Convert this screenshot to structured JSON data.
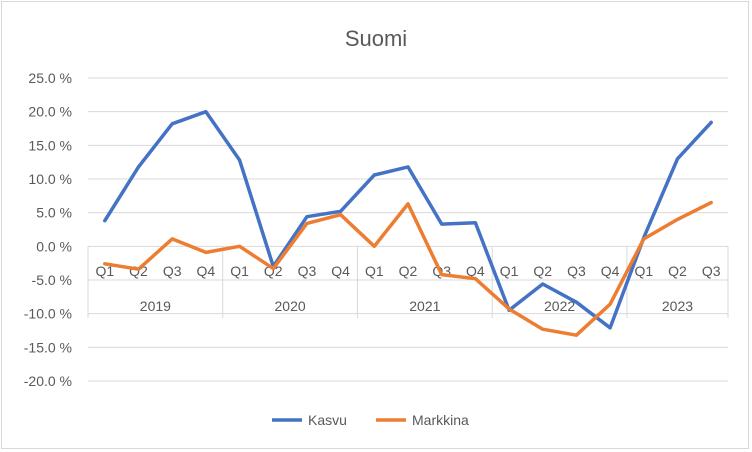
{
  "chart_data": {
    "type": "line",
    "title": "Suomi",
    "y_ticks": [
      "25.0 %",
      "20.0 %",
      "15.0 %",
      "10.0 %",
      "5.0 %",
      "0.0 %",
      "-5.0 %",
      "-10.0 %",
      "-15.0 %",
      "-20.0 %"
    ],
    "ylim": [
      -20,
      25
    ],
    "grid": true,
    "legend_position": "bottom",
    "years": [
      "2019",
      "2020",
      "2021",
      "2022",
      "2023"
    ],
    "x": [
      "Q1",
      "Q2",
      "Q3",
      "Q4",
      "Q1",
      "Q2",
      "Q3",
      "Q4",
      "Q1",
      "Q2",
      "Q3",
      "Q4",
      "Q1",
      "Q2",
      "Q3",
      "Q4",
      "Q1",
      "Q2",
      "Q3"
    ],
    "series": [
      {
        "name": "Kasvu",
        "color": "#4472c4",
        "values": [
          3.8,
          11.8,
          18.2,
          20.0,
          12.8,
          -3.0,
          4.4,
          5.2,
          10.6,
          11.8,
          3.3,
          3.5,
          -9.5,
          -5.6,
          -8.3,
          -12.1,
          1.3,
          13.0,
          18.4
        ]
      },
      {
        "name": "Markkina",
        "color": "#ed7d31",
        "values": [
          -2.6,
          -3.4,
          1.1,
          -0.9,
          0.0,
          -3.3,
          3.4,
          4.7,
          0.0,
          6.3,
          -4.2,
          -4.8,
          -9.3,
          -12.3,
          -13.2,
          -8.6,
          1.1,
          4.0,
          6.5
        ]
      }
    ]
  }
}
